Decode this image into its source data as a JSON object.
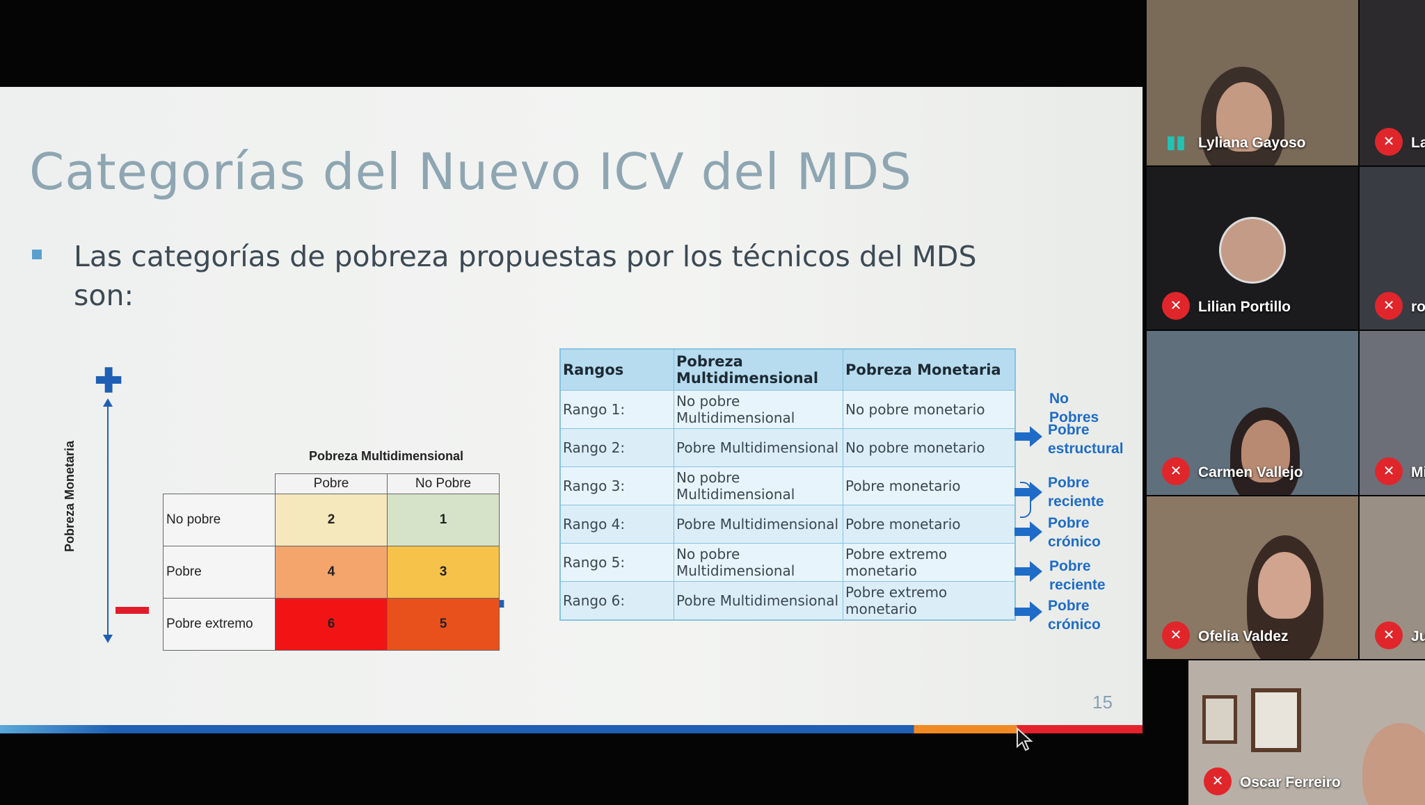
{
  "slide": {
    "title": "Categorías del Nuevo ICV del MDS",
    "bullet": "Las categorías de pobreza propuestas por los técnicos del MDS son:",
    "page_number": "15"
  },
  "matrix": {
    "vertical_axis_label": "Pobreza Monetaria",
    "header": "Pobreza Multidimensional",
    "columns": [
      "Pobre",
      "No Pobre"
    ],
    "plus_symbol": "✚",
    "rows": [
      {
        "label": "No pobre",
        "cells": [
          {
            "value": "2",
            "color": "#f6e8bd"
          },
          {
            "value": "1",
            "color": "#d6e3c8"
          }
        ]
      },
      {
        "label": "Pobre",
        "cells": [
          {
            "value": "4",
            "color": "#f4a56c"
          },
          {
            "value": "3",
            "color": "#f6c24a"
          }
        ]
      },
      {
        "label": "Pobre extremo",
        "cells": [
          {
            "value": "6",
            "color": "#f21414"
          },
          {
            "value": "5",
            "color": "#e9511c"
          }
        ]
      }
    ]
  },
  "rangos": {
    "headers": [
      "Rangos",
      "Pobreza Multidimensional",
      "Pobreza Monetaria"
    ],
    "rows": [
      [
        "Rango 1:",
        "No pobre Multidimensional",
        "No pobre monetario"
      ],
      [
        "Rango 2:",
        "Pobre Multidimensional",
        "No pobre monetario"
      ],
      [
        "Rango 3:",
        "No pobre Multidimensional",
        "Pobre monetario"
      ],
      [
        "Rango 4:",
        "Pobre Multidimensional",
        "Pobre monetario"
      ],
      [
        "Rango 5:",
        "No pobre Multidimensional",
        "Pobre extremo monetario"
      ],
      [
        "Rango 6:",
        "Pobre Multidimensional",
        "Pobre extremo monetario"
      ]
    ]
  },
  "categories": [
    {
      "line1": "No",
      "line2": "Pobres",
      "marker": "brace"
    },
    {
      "line1": "Pobre",
      "line2": "estructural",
      "marker": "arrow"
    },
    {
      "line1": "Pobre",
      "line2": "reciente",
      "marker": "arrow"
    },
    {
      "line1": "Pobre",
      "line2": "crónico",
      "marker": "arrow"
    },
    {
      "line1": "Pobre",
      "line2": "reciente",
      "marker": "arrow"
    },
    {
      "line1": "Pobre",
      "line2": "crónico",
      "marker": "arrow"
    }
  ],
  "participants": [
    {
      "name": "Lyliana Gayoso",
      "mic": "speaking",
      "bg": "#7a6a58"
    },
    {
      "name": "La",
      "mic": "muted",
      "bg": "#2c2a2c"
    },
    {
      "name": "Lilian Portillo",
      "mic": "muted",
      "bg": "#1b1b1d"
    },
    {
      "name": "rob",
      "mic": "muted",
      "bg": "#3a3c44"
    },
    {
      "name": "Carmen Vallejo",
      "mic": "muted",
      "bg": "#5f6f7c"
    },
    {
      "name": "Mir",
      "mic": "muted",
      "bg": "#6c6f78"
    },
    {
      "name": "Ofelia Valdez",
      "mic": "muted",
      "bg": "#8a7864"
    },
    {
      "name": "Jua",
      "mic": "muted",
      "bg": "#9a8f84"
    },
    {
      "name": "Oscar Ferreiro",
      "mic": "muted",
      "bg": "#b8b0a6"
    }
  ],
  "icons": {
    "muted": "mic-off-icon",
    "speaking": "audio-wave-icon"
  }
}
